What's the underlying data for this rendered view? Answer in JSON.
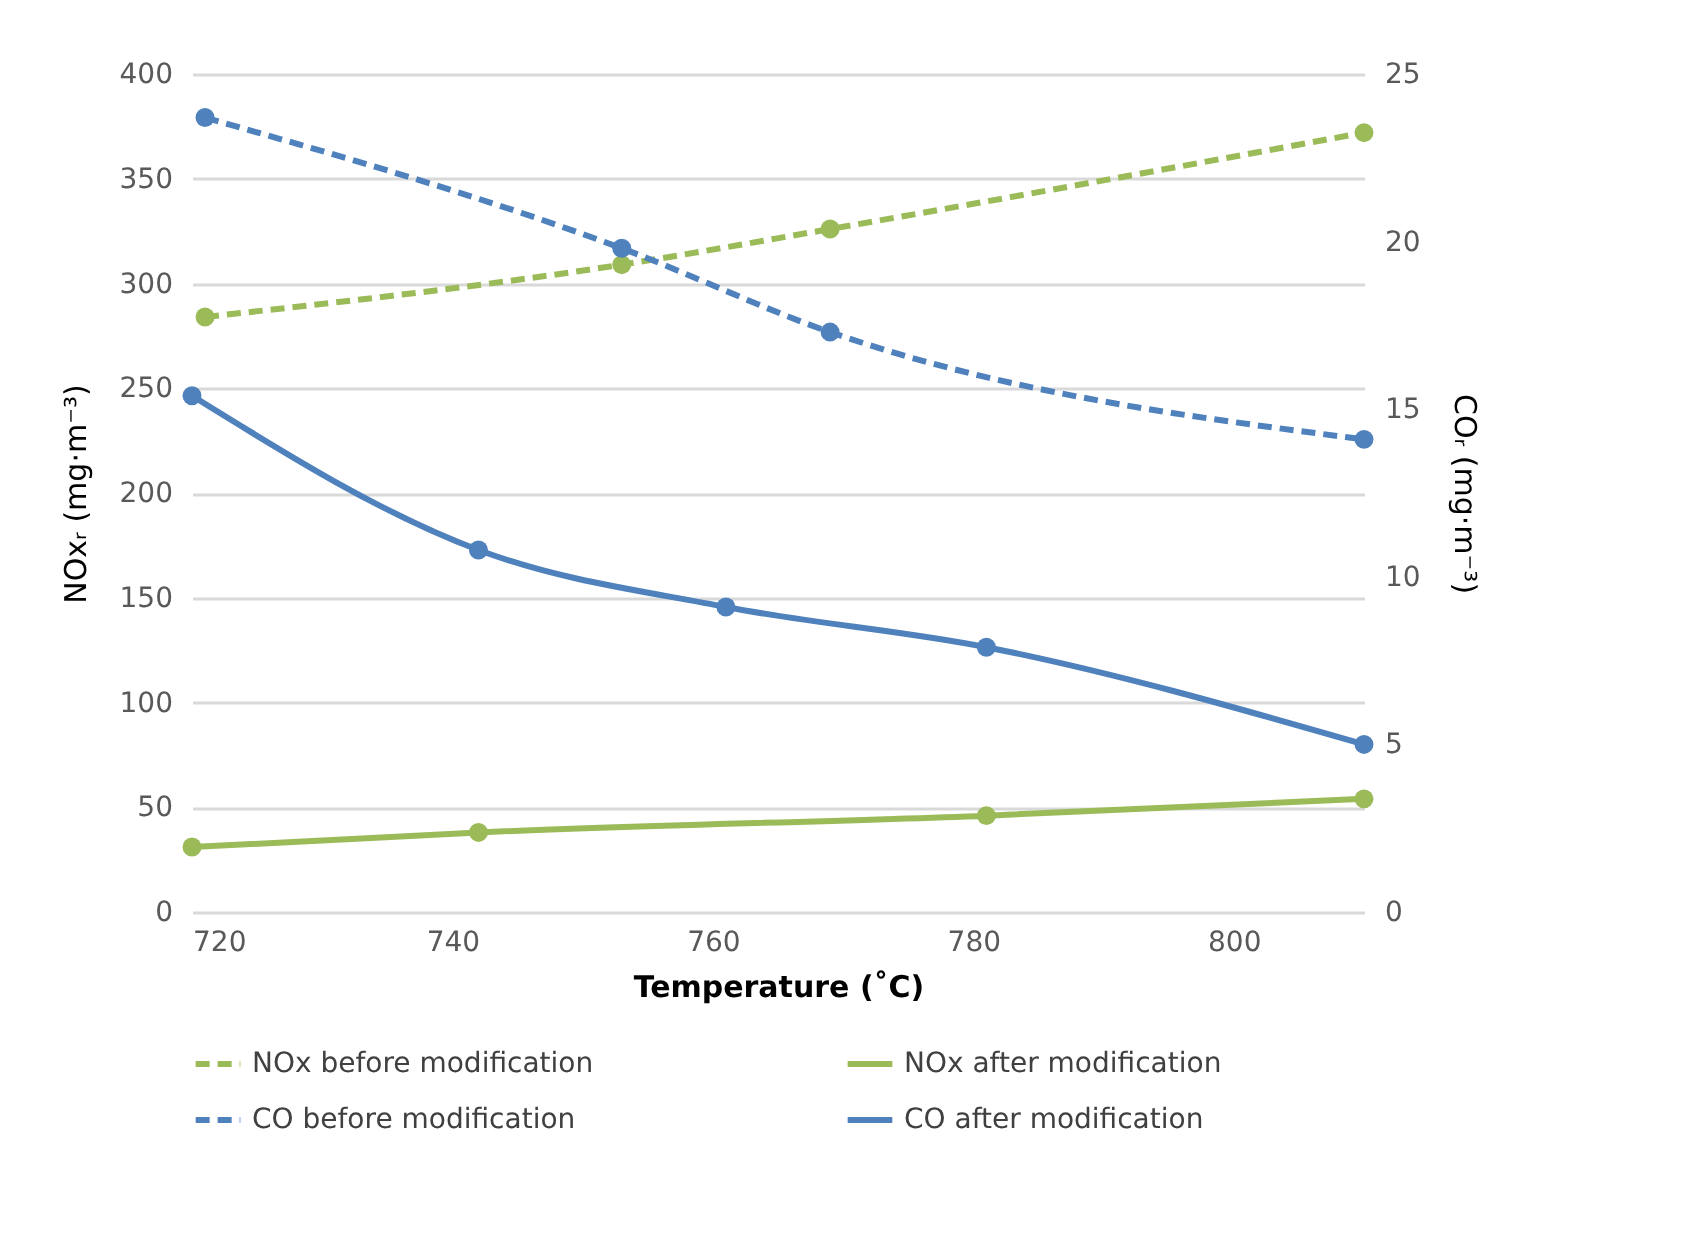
{
  "chart_data": {
    "type": "line",
    "xlabel": "Temperature (˚C)",
    "ylabel": "NOxᵣ (mg·m⁻³)",
    "y2label": "COᵣ (mg·m⁻³)",
    "xlim": [
      720,
      810
    ],
    "xticks": [
      720,
      740,
      760,
      780,
      800
    ],
    "ylim": [
      0,
      400
    ],
    "yticks": [
      0,
      50,
      100,
      150,
      200,
      250,
      300,
      350,
      400
    ],
    "y2lim": [
      0,
      25
    ],
    "y2ticks": [
      0,
      5,
      10,
      15,
      20,
      25
    ],
    "grid": "y",
    "legend": "bottom",
    "marker": "circle",
    "series": [
      {
        "name": "NOx before modification",
        "color": "#9bbb59",
        "line_style": "dashed",
        "x": [
          721,
          753,
          769,
          810
        ],
        "values": [
          284,
          309,
          326,
          372
        ]
      },
      {
        "name": "NOx after modification",
        "color": "#9bbb59",
        "line_style": "solid",
        "x": [
          720,
          742,
          781,
          810
        ],
        "values": [
          31,
          38,
          46,
          54
        ]
      },
      {
        "name": "CO before modification",
        "color": "#4f81bd",
        "line_style": "dashed",
        "axis": "y2",
        "x": [
          721,
          753,
          769,
          810
        ],
        "values": [
          23.7,
          19.8,
          17.3,
          14.1
        ]
      },
      {
        "name": "CO after modification",
        "color": "#4f81bd",
        "line_style": "solid",
        "axis": "y2",
        "x": [
          720,
          742,
          761,
          781,
          810
        ],
        "values": [
          15.4,
          10.8,
          9.1,
          7.9,
          5.0
        ]
      }
    ]
  }
}
